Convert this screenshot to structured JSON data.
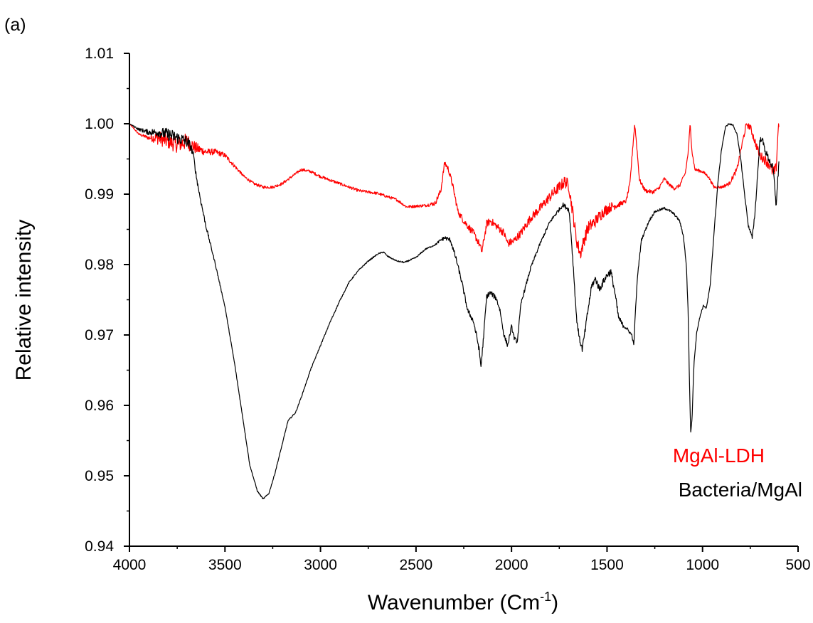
{
  "panel_label": "(a)",
  "chart_data": {
    "type": "line",
    "xlabel": "Wavenumber (Cm",
    "xlabel_sup": "-1",
    "xlabel_close": ")",
    "ylabel": "Relative intensity",
    "xlim": [
      4000,
      500
    ],
    "ylim": [
      0.94,
      1.01
    ],
    "x_reversed": true,
    "x_ticks": [
      4000,
      3500,
      3000,
      2500,
      2000,
      1500,
      1000,
      500
    ],
    "x_tick_labels": [
      "4000",
      "3500",
      "3000",
      "2500",
      "2000",
      "1500",
      "1000",
      "500"
    ],
    "y_ticks": [
      0.94,
      0.95,
      0.96,
      0.97,
      0.98,
      0.99,
      1.0,
      1.01
    ],
    "y_tick_labels": [
      "0.94",
      "0.95",
      "0.96",
      "0.97",
      "0.98",
      "0.99",
      "1.00",
      "1.01"
    ],
    "grid": false,
    "legend_position": "lower-right",
    "series": [
      {
        "name": "MgAl-LDH",
        "color": "#ff0000",
        "noise_profile": [
          [
            4000,
            0
          ],
          [
            3900,
            0.0003
          ],
          [
            3850,
            0.001
          ],
          [
            3700,
            0.0012
          ],
          [
            3600,
            0.0005
          ],
          [
            3400,
            0.0002
          ],
          [
            2450,
            0.0002
          ],
          [
            2380,
            0.0004
          ],
          [
            2200,
            0.0005
          ],
          [
            1900,
            0.0006
          ],
          [
            1750,
            0.0008
          ],
          [
            1650,
            0.001
          ],
          [
            1500,
            0.0008
          ],
          [
            1420,
            0.0003
          ],
          [
            900,
            0.0002
          ],
          [
            700,
            0.0006
          ],
          [
            600,
            0.001
          ]
        ],
        "points": [
          [
            4000,
            1.0
          ],
          [
            3950,
            0.9985
          ],
          [
            3900,
            0.998
          ],
          [
            3850,
            0.998
          ],
          [
            3800,
            0.9975
          ],
          [
            3750,
            0.997
          ],
          [
            3700,
            0.9975
          ],
          [
            3650,
            0.9965
          ],
          [
            3600,
            0.996
          ],
          [
            3550,
            0.996
          ],
          [
            3500,
            0.9955
          ],
          [
            3450,
            0.994
          ],
          [
            3400,
            0.9925
          ],
          [
            3350,
            0.9915
          ],
          [
            3300,
            0.991
          ],
          [
            3250,
            0.991
          ],
          [
            3200,
            0.9915
          ],
          [
            3150,
            0.9925
          ],
          [
            3100,
            0.9935
          ],
          [
            3050,
            0.9932
          ],
          [
            3000,
            0.9925
          ],
          [
            2900,
            0.9915
          ],
          [
            2800,
            0.9905
          ],
          [
            2700,
            0.9901
          ],
          [
            2600,
            0.9892
          ],
          [
            2550,
            0.9882
          ],
          [
            2450,
            0.9884
          ],
          [
            2400,
            0.9887
          ],
          [
            2370,
            0.9905
          ],
          [
            2350,
            0.9945
          ],
          [
            2330,
            0.9935
          ],
          [
            2310,
            0.9915
          ],
          [
            2280,
            0.9875
          ],
          [
            2250,
            0.9862
          ],
          [
            2200,
            0.9845
          ],
          [
            2170,
            0.983
          ],
          [
            2155,
            0.9818
          ],
          [
            2130,
            0.9858
          ],
          [
            2110,
            0.9862
          ],
          [
            2080,
            0.9855
          ],
          [
            2040,
            0.9845
          ],
          [
            2020,
            0.983
          ],
          [
            1990,
            0.9833
          ],
          [
            1950,
            0.9845
          ],
          [
            1900,
            0.9866
          ],
          [
            1850,
            0.988
          ],
          [
            1800,
            0.9896
          ],
          [
            1750,
            0.991
          ],
          [
            1720,
            0.9918
          ],
          [
            1700,
            0.9912
          ],
          [
            1680,
            0.9875
          ],
          [
            1660,
            0.9835
          ],
          [
            1640,
            0.9815
          ],
          [
            1620,
            0.9835
          ],
          [
            1600,
            0.9852
          ],
          [
            1560,
            0.9862
          ],
          [
            1520,
            0.9875
          ],
          [
            1480,
            0.9882
          ],
          [
            1440,
            0.9885
          ],
          [
            1400,
            0.989
          ],
          [
            1380,
            0.9915
          ],
          [
            1365,
            0.9968
          ],
          [
            1355,
            1.0
          ],
          [
            1345,
            0.997
          ],
          [
            1330,
            0.992
          ],
          [
            1300,
            0.9905
          ],
          [
            1260,
            0.9903
          ],
          [
            1230,
            0.9908
          ],
          [
            1200,
            0.9922
          ],
          [
            1180,
            0.9915
          ],
          [
            1150,
            0.9908
          ],
          [
            1120,
            0.9912
          ],
          [
            1090,
            0.993
          ],
          [
            1075,
            0.996
          ],
          [
            1065,
            1.0
          ],
          [
            1055,
            0.996
          ],
          [
            1040,
            0.9935
          ],
          [
            1000,
            0.9932
          ],
          [
            970,
            0.9925
          ],
          [
            940,
            0.991
          ],
          [
            900,
            0.991
          ],
          [
            860,
            0.9915
          ],
          [
            820,
            0.9935
          ],
          [
            790,
            0.9975
          ],
          [
            770,
            1.0
          ],
          [
            750,
            0.9995
          ],
          [
            720,
            0.997
          ],
          [
            700,
            0.9955
          ],
          [
            670,
            0.9948
          ],
          [
            650,
            0.9942
          ],
          [
            630,
            0.993
          ],
          [
            615,
            0.9935
          ],
          [
            605,
            0.999
          ],
          [
            600,
            1.0
          ]
        ]
      },
      {
        "name": "Bacteria/MgAl",
        "color": "#000000",
        "noise_profile": [
          [
            4000,
            0
          ],
          [
            3900,
            0.0004
          ],
          [
            3800,
            0.0009
          ],
          [
            3700,
            0.0009
          ],
          [
            3660,
            0.0004
          ],
          [
            3500,
            8e-05
          ],
          [
            2400,
            0.0001
          ],
          [
            2350,
            0.0003
          ],
          [
            2150,
            0.0004
          ],
          [
            1850,
            0.0002
          ],
          [
            1720,
            0.0003
          ],
          [
            1600,
            0.0005
          ],
          [
            1450,
            0.0005
          ],
          [
            1380,
            0.0002
          ],
          [
            800,
            0.0001
          ],
          [
            700,
            0.0004
          ],
          [
            600,
            0.0006
          ]
        ],
        "points": [
          [
            4000,
            1.0
          ],
          [
            3950,
            0.9992
          ],
          [
            3900,
            0.9988
          ],
          [
            3850,
            0.9988
          ],
          [
            3800,
            0.9985
          ],
          [
            3750,
            0.998
          ],
          [
            3700,
            0.9975
          ],
          [
            3680,
            0.9968
          ],
          [
            3665,
            0.9955
          ],
          [
            3650,
            0.9925
          ],
          [
            3630,
            0.9895
          ],
          [
            3600,
            0.9855
          ],
          [
            3550,
            0.98
          ],
          [
            3500,
            0.974
          ],
          [
            3450,
            0.966
          ],
          [
            3400,
            0.957
          ],
          [
            3370,
            0.9515
          ],
          [
            3330,
            0.9478
          ],
          [
            3300,
            0.9467
          ],
          [
            3270,
            0.9475
          ],
          [
            3240,
            0.9502
          ],
          [
            3200,
            0.9545
          ],
          [
            3170,
            0.9578
          ],
          [
            3130,
            0.959
          ],
          [
            3100,
            0.9612
          ],
          [
            3050,
            0.9652
          ],
          [
            3000,
            0.9685
          ],
          [
            2950,
            0.9718
          ],
          [
            2900,
            0.9748
          ],
          [
            2850,
            0.9775
          ],
          [
            2800,
            0.9792
          ],
          [
            2750,
            0.9805
          ],
          [
            2700,
            0.9815
          ],
          [
            2670,
            0.9818
          ],
          [
            2650,
            0.9812
          ],
          [
            2600,
            0.9805
          ],
          [
            2560,
            0.9803
          ],
          [
            2500,
            0.981
          ],
          [
            2450,
            0.9822
          ],
          [
            2400,
            0.9828
          ],
          [
            2370,
            0.9835
          ],
          [
            2350,
            0.9838
          ],
          [
            2320,
            0.9835
          ],
          [
            2290,
            0.9808
          ],
          [
            2260,
            0.9775
          ],
          [
            2230,
            0.9735
          ],
          [
            2200,
            0.972
          ],
          [
            2180,
            0.9695
          ],
          [
            2170,
            0.968
          ],
          [
            2160,
            0.9655
          ],
          [
            2150,
            0.9685
          ],
          [
            2130,
            0.9755
          ],
          [
            2110,
            0.976
          ],
          [
            2080,
            0.9752
          ],
          [
            2060,
            0.9735
          ],
          [
            2040,
            0.97
          ],
          [
            2020,
            0.9685
          ],
          [
            2000,
            0.9712
          ],
          [
            1985,
            0.9695
          ],
          [
            1970,
            0.969
          ],
          [
            1950,
            0.9745
          ],
          [
            1900,
            0.9795
          ],
          [
            1850,
            0.983
          ],
          [
            1800,
            0.986
          ],
          [
            1760,
            0.9875
          ],
          [
            1730,
            0.9885
          ],
          [
            1700,
            0.9878
          ],
          [
            1690,
            0.985
          ],
          [
            1675,
            0.979
          ],
          [
            1660,
            0.9725
          ],
          [
            1645,
            0.9695
          ],
          [
            1630,
            0.968
          ],
          [
            1615,
            0.9705
          ],
          [
            1600,
            0.9735
          ],
          [
            1580,
            0.977
          ],
          [
            1560,
            0.978
          ],
          [
            1540,
            0.9765
          ],
          [
            1520,
            0.9775
          ],
          [
            1500,
            0.9785
          ],
          [
            1480,
            0.979
          ],
          [
            1460,
            0.9762
          ],
          [
            1440,
            0.9725
          ],
          [
            1420,
            0.9715
          ],
          [
            1400,
            0.971
          ],
          [
            1385,
            0.9705
          ],
          [
            1370,
            0.97
          ],
          [
            1360,
            0.9685
          ],
          [
            1350,
            0.974
          ],
          [
            1340,
            0.9785
          ],
          [
            1320,
            0.9835
          ],
          [
            1280,
            0.9862
          ],
          [
            1250,
            0.9875
          ],
          [
            1220,
            0.9878
          ],
          [
            1200,
            0.988
          ],
          [
            1180,
            0.9878
          ],
          [
            1150,
            0.9872
          ],
          [
            1120,
            0.9862
          ],
          [
            1100,
            0.984
          ],
          [
            1085,
            0.98
          ],
          [
            1075,
            0.973
          ],
          [
            1068,
            0.9625
          ],
          [
            1062,
            0.9562
          ],
          [
            1055,
            0.958
          ],
          [
            1045,
            0.966
          ],
          [
            1030,
            0.9705
          ],
          [
            1010,
            0.973
          ],
          [
            995,
            0.9742
          ],
          [
            980,
            0.9738
          ],
          [
            960,
            0.977
          ],
          [
            940,
            0.9845
          ],
          [
            920,
            0.9915
          ],
          [
            900,
            0.9965
          ],
          [
            880,
            0.9995
          ],
          [
            865,
            1.0
          ],
          [
            840,
            0.9998
          ],
          [
            820,
            0.9985
          ],
          [
            800,
            0.995
          ],
          [
            780,
            0.99
          ],
          [
            760,
            0.9855
          ],
          [
            740,
            0.9838
          ],
          [
            725,
            0.9875
          ],
          [
            710,
            0.9935
          ],
          [
            700,
            0.9975
          ],
          [
            690,
            0.998
          ],
          [
            670,
            0.996
          ],
          [
            650,
            0.9948
          ],
          [
            630,
            0.9935
          ],
          [
            615,
            0.9885
          ],
          [
            608,
            0.991
          ],
          [
            600,
            0.995
          ]
        ]
      }
    ]
  }
}
